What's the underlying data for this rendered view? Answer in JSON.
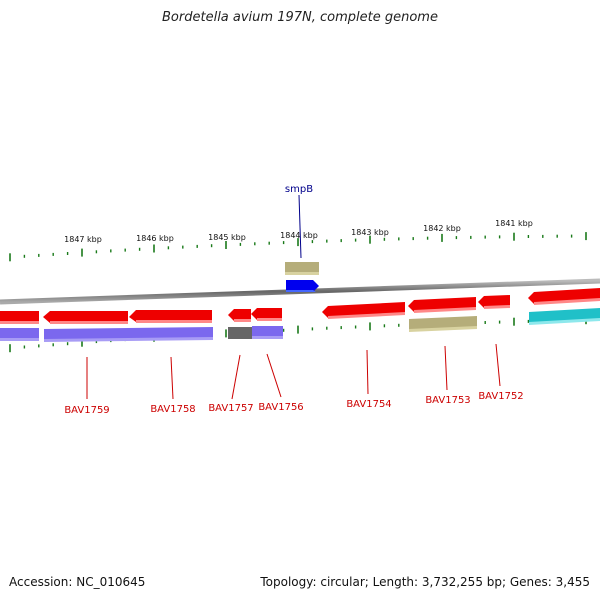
{
  "title": "Bordetella avium 197N, complete genome",
  "footer": {
    "accession": "Accession: NC_010645",
    "topology": "Topology: circular; Length: 3,732,255 bp; Genes: 3,455"
  },
  "colors": {
    "cds_forward": "#ee0000",
    "cds_reverse_strand_bar": "#7b68ee",
    "rna_like": "#b5ad7a",
    "highlight_gene": "#0000ff",
    "teal_feature": "#20c0c8",
    "label_red": "#cc0000",
    "label_blue": "#00008b",
    "tick_green": "#1a7a1a"
  },
  "scale_labels": [
    "1847 kbp",
    "1846 kbp",
    "1845 kbp",
    "1844 kbp",
    "1843 kbp",
    "1842 kbp",
    "1841 kbp"
  ],
  "gene_labels": {
    "top": [
      "smpB"
    ],
    "bottom": [
      "BAV1759",
      "BAV1758",
      "BAV1757",
      "BAV1756",
      "BAV1754",
      "BAV1753",
      "BAV1752"
    ]
  }
}
